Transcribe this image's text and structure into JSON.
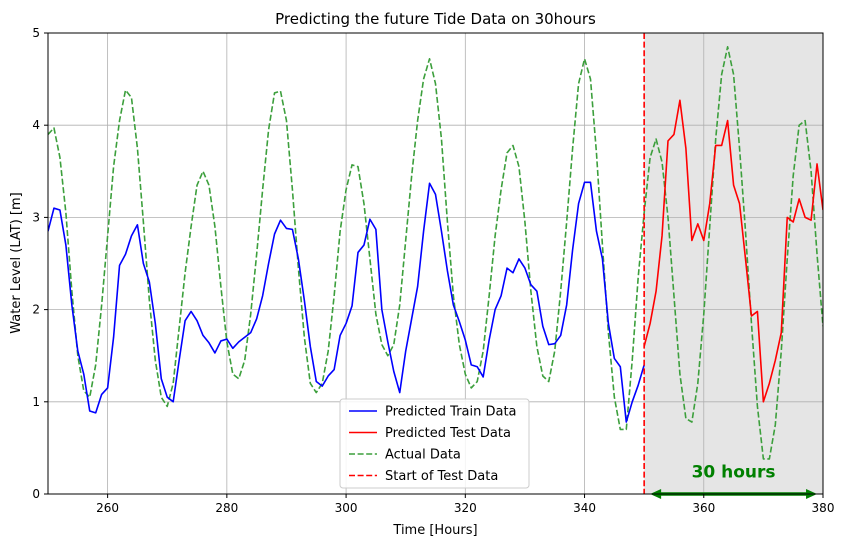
{
  "chart_data": {
    "type": "line",
    "title": "Predicting the future Tide Data on 30hours",
    "xlabel": "Time [Hours]",
    "ylabel": "Water Level (LAT) [m]",
    "xlim": [
      250,
      380
    ],
    "ylim": [
      0,
      5
    ],
    "xticks": [
      260,
      280,
      300,
      320,
      340,
      360,
      380
    ],
    "yticks": [
      0,
      1,
      2,
      3,
      4,
      5
    ],
    "grid": true,
    "legend_position": "lower center",
    "test_start": 350,
    "shaded_range": [
      350,
      380
    ],
    "annotation": {
      "text": "30 hours",
      "from": 351,
      "to": 379,
      "y": 0.0,
      "text_x": 365,
      "text_y": 0.18,
      "color": "#008000"
    },
    "series": [
      {
        "name": "Predicted Train Data",
        "color": "#0000ff",
        "style": "solid",
        "x": [
          250,
          251,
          252,
          253,
          254,
          255,
          256,
          257,
          258,
          259,
          260,
          261,
          262,
          263,
          264,
          265,
          266,
          267,
          268,
          269,
          270,
          271,
          272,
          273,
          274,
          275,
          276,
          277,
          278,
          279,
          280,
          281,
          282,
          283,
          284,
          285,
          286,
          287,
          288,
          289,
          290,
          291,
          292,
          293,
          294,
          295,
          296,
          297,
          298,
          299,
          300,
          301,
          302,
          303,
          304,
          305,
          306,
          307,
          308,
          309,
          310,
          311,
          312,
          313,
          314,
          315,
          316,
          317,
          318,
          319,
          320,
          321,
          322,
          323,
          324,
          325,
          326,
          327,
          328,
          329,
          330,
          331,
          332,
          333,
          334,
          335,
          336,
          337,
          338,
          339,
          340,
          341,
          342,
          343,
          344,
          345,
          346,
          347,
          348,
          349,
          350
        ],
        "y": [
          2.85,
          3.1,
          3.08,
          2.7,
          2.05,
          1.55,
          1.3,
          0.9,
          0.88,
          1.08,
          1.15,
          1.7,
          2.48,
          2.6,
          2.8,
          2.92,
          2.5,
          2.3,
          1.85,
          1.25,
          1.05,
          1.0,
          1.45,
          1.88,
          1.98,
          1.88,
          1.72,
          1.64,
          1.53,
          1.66,
          1.68,
          1.58,
          1.65,
          1.7,
          1.75,
          1.9,
          2.15,
          2.5,
          2.82,
          2.97,
          2.88,
          2.87,
          2.55,
          2.1,
          1.6,
          1.22,
          1.17,
          1.28,
          1.35,
          1.72,
          1.85,
          2.04,
          2.62,
          2.7,
          2.98,
          2.87,
          2.0,
          1.65,
          1.33,
          1.1,
          1.55,
          1.9,
          2.25,
          2.85,
          3.37,
          3.25,
          2.85,
          2.42,
          2.05,
          1.87,
          1.67,
          1.4,
          1.38,
          1.27,
          1.67,
          2.0,
          2.15,
          2.45,
          2.4,
          2.55,
          2.45,
          2.27,
          2.2,
          1.82,
          1.62,
          1.63,
          1.72,
          2.05,
          2.65,
          3.15,
          3.38,
          3.38,
          2.85,
          2.55,
          1.85,
          1.47,
          1.38,
          0.78,
          1.0,
          1.18,
          1.4
        ]
      },
      {
        "name": "Predicted Test Data",
        "color": "#ff0000",
        "style": "solid",
        "x": [
          350,
          351,
          352,
          353,
          354,
          355,
          356,
          357,
          358,
          359,
          360,
          361,
          362,
          363,
          364,
          365,
          366,
          367,
          368,
          369,
          370,
          371,
          372,
          373,
          374,
          375,
          376,
          377,
          378,
          379,
          380
        ],
        "y": [
          1.6,
          1.85,
          2.2,
          2.8,
          3.83,
          3.9,
          4.27,
          3.75,
          2.75,
          2.93,
          2.75,
          3.15,
          3.78,
          3.78,
          4.05,
          3.35,
          3.15,
          2.55,
          1.93,
          1.98,
          1.0,
          1.2,
          1.45,
          1.75,
          3.0,
          2.95,
          3.2,
          3.0,
          2.97,
          3.58,
          3.08
        ]
      },
      {
        "name": "Actual Data",
        "color": "#3c9f3c",
        "style": "dashed",
        "x": [
          250,
          251,
          252,
          253,
          254,
          255,
          256,
          257,
          258,
          259,
          260,
          261,
          262,
          263,
          264,
          265,
          266,
          267,
          268,
          269,
          270,
          271,
          272,
          273,
          274,
          275,
          276,
          277,
          278,
          279,
          280,
          281,
          282,
          283,
          284,
          285,
          286,
          287,
          288,
          289,
          290,
          291,
          292,
          293,
          294,
          295,
          296,
          297,
          298,
          299,
          300,
          301,
          302,
          303,
          304,
          305,
          306,
          307,
          308,
          309,
          310,
          311,
          312,
          313,
          314,
          315,
          316,
          317,
          318,
          319,
          320,
          321,
          322,
          323,
          324,
          325,
          326,
          327,
          328,
          329,
          330,
          331,
          332,
          333,
          334,
          335,
          336,
          337,
          338,
          339,
          340,
          341,
          342,
          343,
          344,
          345,
          346,
          347,
          348,
          349,
          350,
          351,
          352,
          353,
          354,
          355,
          356,
          357,
          358,
          359,
          360,
          361,
          362,
          363,
          364,
          365,
          366,
          367,
          368,
          369,
          370,
          371,
          372,
          373,
          374,
          375,
          376,
          377,
          378,
          379,
          380
        ],
        "y": [
          3.9,
          3.97,
          3.65,
          3.05,
          2.2,
          1.5,
          1.12,
          1.05,
          1.4,
          2.05,
          2.8,
          3.55,
          4.05,
          4.38,
          4.3,
          3.75,
          2.95,
          2.1,
          1.45,
          1.05,
          0.95,
          1.2,
          1.8,
          2.4,
          2.9,
          3.35,
          3.5,
          3.35,
          2.9,
          2.25,
          1.65,
          1.3,
          1.25,
          1.45,
          1.95,
          2.6,
          3.3,
          3.95,
          4.35,
          4.37,
          4.05,
          3.3,
          2.45,
          1.7,
          1.2,
          1.1,
          1.2,
          1.55,
          2.15,
          2.85,
          3.3,
          3.57,
          3.55,
          3.15,
          2.55,
          1.95,
          1.62,
          1.5,
          1.62,
          2.05,
          2.75,
          3.45,
          4.05,
          4.5,
          4.72,
          4.45,
          3.85,
          2.95,
          2.15,
          1.62,
          1.3,
          1.15,
          1.22,
          1.55,
          2.15,
          2.8,
          3.3,
          3.7,
          3.78,
          3.55,
          2.95,
          2.2,
          1.6,
          1.28,
          1.22,
          1.55,
          2.2,
          2.95,
          3.75,
          4.45,
          4.72,
          4.5,
          3.7,
          2.7,
          1.75,
          1.05,
          0.7,
          0.7,
          1.45,
          2.35,
          3.05,
          3.65,
          3.85,
          3.6,
          3.0,
          2.15,
          1.3,
          0.82,
          0.78,
          1.2,
          1.95,
          2.9,
          3.85,
          4.55,
          4.85,
          4.55,
          3.75,
          2.85,
          1.85,
          0.95,
          0.38,
          0.38,
          0.75,
          1.55,
          2.55,
          3.45,
          4.0,
          4.05,
          3.5,
          2.6,
          1.82
        ]
      },
      {
        "name": "Start of Test Data",
        "color": "#ff0000",
        "style": "dashed-vertical"
      }
    ]
  }
}
